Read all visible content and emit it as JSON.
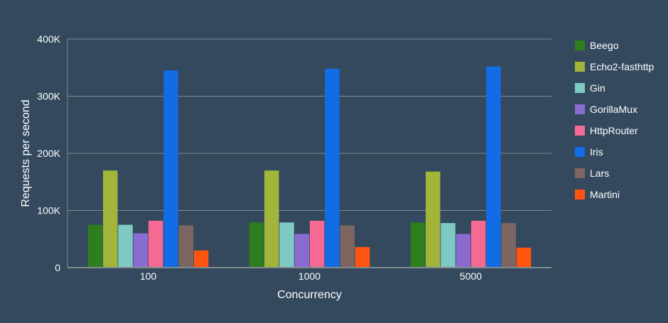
{
  "chart_data": {
    "type": "bar",
    "categories": [
      "100",
      "1000",
      "5000"
    ],
    "series": [
      {
        "name": "Beego",
        "color": "#2e7d1e",
        "values": [
          75000,
          79000,
          79000
        ]
      },
      {
        "name": "Echo2-fasthttp",
        "color": "#a0b53a",
        "values": [
          170000,
          170000,
          168000
        ]
      },
      {
        "name": "Gin",
        "color": "#7fc9c4",
        "values": [
          75000,
          79000,
          78000
        ]
      },
      {
        "name": "GorillaMux",
        "color": "#8a6cd1",
        "values": [
          60000,
          59000,
          59000
        ]
      },
      {
        "name": "HttpRouter",
        "color": "#f46a93",
        "values": [
          82000,
          82000,
          82000
        ]
      },
      {
        "name": "Iris",
        "color": "#126ce6",
        "values": [
          345000,
          348000,
          352000
        ]
      },
      {
        "name": "Lars",
        "color": "#7d6562",
        "values": [
          74000,
          74000,
          78000
        ]
      },
      {
        "name": "Martini",
        "color": "#ff5511",
        "values": [
          30000,
          36000,
          35000
        ]
      }
    ],
    "xlabel": "Concurrency",
    "ylabel": "Requests per second",
    "ylim": [
      0,
      400000
    ],
    "yticks": [
      {
        "value": 0,
        "label": "0"
      },
      {
        "value": 100000,
        "label": "100K"
      },
      {
        "value": 200000,
        "label": "200K"
      },
      {
        "value": 300000,
        "label": "300K"
      },
      {
        "value": 400000,
        "label": "400K"
      }
    ],
    "grid": true,
    "legend_position": "right",
    "colors": {
      "background": "#34495e",
      "grid": "#7f8c8d",
      "text": "#ffffff"
    }
  }
}
